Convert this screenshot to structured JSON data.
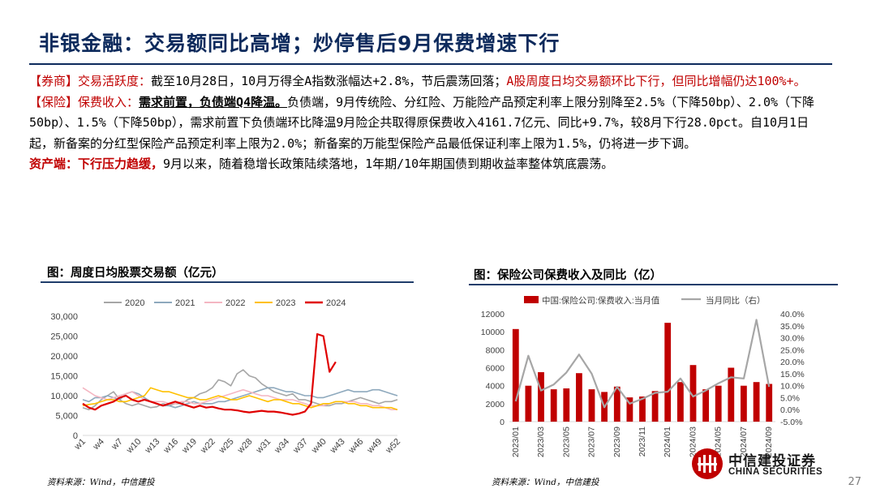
{
  "title": "非银金融：交易额同比高增；炒停售后9月保费增速下行",
  "body": {
    "p1": {
      "tag": "【券商】",
      "head": "交易活跃度：",
      "text": "截至10月28日，10月万得全A指数涨幅达+2.8%，节后震荡回落；",
      "red_text": "A股周度日均交易额环比下行，但同比增幅仍达100%+。"
    },
    "p2": {
      "tag": "【保险】",
      "head": "保费收入：",
      "bold_ul": "需求前置，负债端Q4降温。",
      "text": "负债端，9月传统险、分红险、万能险产品预定利率上限分别降至2.5%（下降50bp）、2.0%（下降50bp）、1.5%（下降50bp），需求前置下负债端环比降温9月险企共取得原保费收入4161.7亿元、同比+9.7%，较8月下行28.0pct。自10月1日起，新备案的分红型保险产品预定利率上限为2.0%；新备案的万能型保险产品最低保证利率上限为1.5%，仍将进一步下调。"
    },
    "p3": {
      "head": "资产端：",
      "head2": "下行压力趋缓，",
      "text": "9月以来，随着稳增长政策陆续落地，1年期/10年期国债到期收益率整体筑底震荡。"
    }
  },
  "left_chart": {
    "title": "图：周度日均股票交易额（亿元）",
    "source": "资料来源：Wind，中信建投"
  },
  "right_chart": {
    "title": "图：保险公司保费收入及同比（亿）",
    "source": "资料来源：Wind，中信建投"
  },
  "logo": {
    "cn": "中信建投证券",
    "en": "CHINA SECURITIES"
  },
  "page_number": "27",
  "colors": {
    "title": "#0d2a5c",
    "red": "#c00000",
    "bar": "#c00000",
    "line_gray": "#a6a6a6"
  },
  "chart_data": [
    {
      "type": "line",
      "title": "图：周度日均股票交易额（亿元）",
      "x_tick_labels": [
        "w1",
        "w4",
        "w7",
        "w10",
        "w13",
        "w16",
        "w19",
        "w22",
        "w25",
        "w28",
        "w31",
        "w34",
        "w37",
        "w40",
        "w43",
        "w46",
        "w49",
        "w52"
      ],
      "yticks": [
        "30,000",
        "25,000",
        "20,000",
        "15,000",
        "10,000",
        "5,000",
        "0"
      ],
      "ylim": [
        0,
        30000
      ],
      "legend_position": "top",
      "series": [
        {
          "name": "2020",
          "color": "#a6a6a6",
          "values": [
            7000,
            6500,
            7500,
            9000,
            10000,
            11000,
            9000,
            8000,
            7500,
            8000,
            7500,
            7000,
            7200,
            8000,
            7500,
            8000,
            8000,
            9000,
            9500,
            10500,
            11000,
            12000,
            14000,
            13500,
            12500,
            15500,
            16500,
            15000,
            14500,
            13000,
            12000,
            11000,
            10500,
            10000,
            10500,
            9000,
            9000,
            8500,
            8000,
            7500,
            7500,
            8000,
            8000,
            8500,
            9000,
            9500,
            9000,
            8500,
            8000,
            8500,
            8500,
            9000
          ]
        },
        {
          "name": "2021",
          "color": "#8ea9bd",
          "values": [
            9000,
            8500,
            9500,
            9500,
            10000,
            9500,
            9000,
            10500,
            11000,
            10500,
            9500,
            8500,
            8000,
            7500,
            7500,
            7000,
            7500,
            8000,
            8500,
            8000,
            8000,
            8000,
            8500,
            8500,
            9000,
            9500,
            10000,
            10500,
            11000,
            11500,
            12000,
            12000,
            11500,
            11000,
            11000,
            10500,
            10000,
            10000,
            9500,
            9500,
            10000,
            10500,
            11000,
            11500,
            11000,
            11000,
            11000,
            11500,
            11500,
            11000,
            10500,
            10000
          ]
        },
        {
          "name": "2022",
          "color": "#f4b6c2",
          "values": [
            12000,
            11000,
            10000,
            9500,
            9000,
            9500,
            10000,
            10500,
            11000,
            10000,
            9000,
            8500,
            8500,
            8500,
            8000,
            8000,
            8500,
            8500,
            8000,
            8000,
            8500,
            9000,
            9500,
            10000,
            10500,
            11000,
            11500,
            11000,
            10500,
            10000,
            10000,
            9500,
            9000,
            9000,
            9000,
            8500,
            8000,
            7500,
            7500,
            7500,
            8000,
            8500,
            8500,
            8500,
            8500,
            8000,
            8000,
            7500,
            7500,
            7000,
            6500,
            6500
          ]
        },
        {
          "name": "2023",
          "color": "#ffc000",
          "values": [
            7500,
            7800,
            8000,
            8500,
            9000,
            9000,
            8500,
            8500,
            9000,
            9500,
            10000,
            12000,
            11500,
            11000,
            11000,
            10500,
            10000,
            9500,
            9500,
            9000,
            9000,
            9500,
            10000,
            9500,
            9000,
            9000,
            9500,
            10000,
            9500,
            9000,
            8500,
            9000,
            9000,
            8500,
            8000,
            8000,
            7500,
            7000,
            7500,
            8000,
            8000,
            8500,
            8500,
            8000,
            8000,
            7500,
            7500,
            7000,
            7000,
            7000,
            7000,
            6500
          ]
        },
        {
          "name": "2024",
          "color": "#e00000",
          "values": [
            8000,
            7000,
            6500,
            7500,
            8000,
            8500,
            9500,
            10000,
            9000,
            8500,
            9000,
            8500,
            8000,
            7500,
            8000,
            8500,
            8000,
            7500,
            7000,
            7500,
            7000,
            7200,
            6800,
            6500,
            6500,
            6300,
            6000,
            5800,
            6000,
            6200,
            6000,
            6000,
            5800,
            5500,
            5200,
            5500,
            6000,
            8000,
            25500,
            25000,
            16000,
            18500
          ]
        }
      ]
    },
    {
      "type": "bar",
      "title": "图：保险公司保费收入及同比（亿）",
      "categories": [
        "2023/01",
        "2023/02",
        "2023/03",
        "2023/04",
        "2023/05",
        "2023/06",
        "2023/07",
        "2023/08",
        "2023/09",
        "2023/10",
        "2023/11",
        "2023/12",
        "2024/01",
        "2024/02",
        "2024/03",
        "2024/04",
        "2024/05",
        "2024/06",
        "2024/07",
        "2024/08",
        "2024/09"
      ],
      "x_tick_labels": [
        "2023/01",
        "2023/03",
        "2023/05",
        "2023/07",
        "2023/09",
        "2023/11",
        "2024/01",
        "2024/03",
        "2024/05",
        "2024/07",
        "2024/09"
      ],
      "yticks_left": [
        "12000",
        "10000",
        "8000",
        "6000",
        "4000",
        "2000",
        "0"
      ],
      "yticks_right": [
        "40.0%",
        "35.0%",
        "30.0%",
        "25.0%",
        "20.0%",
        "15.0%",
        "10.0%",
        "5.0%",
        "0.0%",
        "-5.0%"
      ],
      "ylim_left": [
        0,
        12000
      ],
      "ylim_right": [
        -5,
        40
      ],
      "legend_position": "top",
      "series": [
        {
          "name": "中国:保险公司:保费收入:当月值",
          "type": "bar",
          "color": "#c00000",
          "values": [
            10300,
            4000,
            5500,
            3600,
            3700,
            5400,
            3600,
            3300,
            3900,
            2700,
            2800,
            3400,
            11000,
            4400,
            6300,
            3600,
            4000,
            6000,
            4000,
            4400,
            4200
          ]
        },
        {
          "name": "当月同比（右）",
          "type": "line",
          "color": "#a6a6a6",
          "values": [
            3.5,
            22.5,
            8,
            10.5,
            15.5,
            23,
            15,
            1,
            9.5,
            2.5,
            4.5,
            7,
            7.5,
            13,
            5.5,
            8,
            11,
            13.5,
            13,
            37.5,
            9.5
          ]
        }
      ]
    }
  ]
}
